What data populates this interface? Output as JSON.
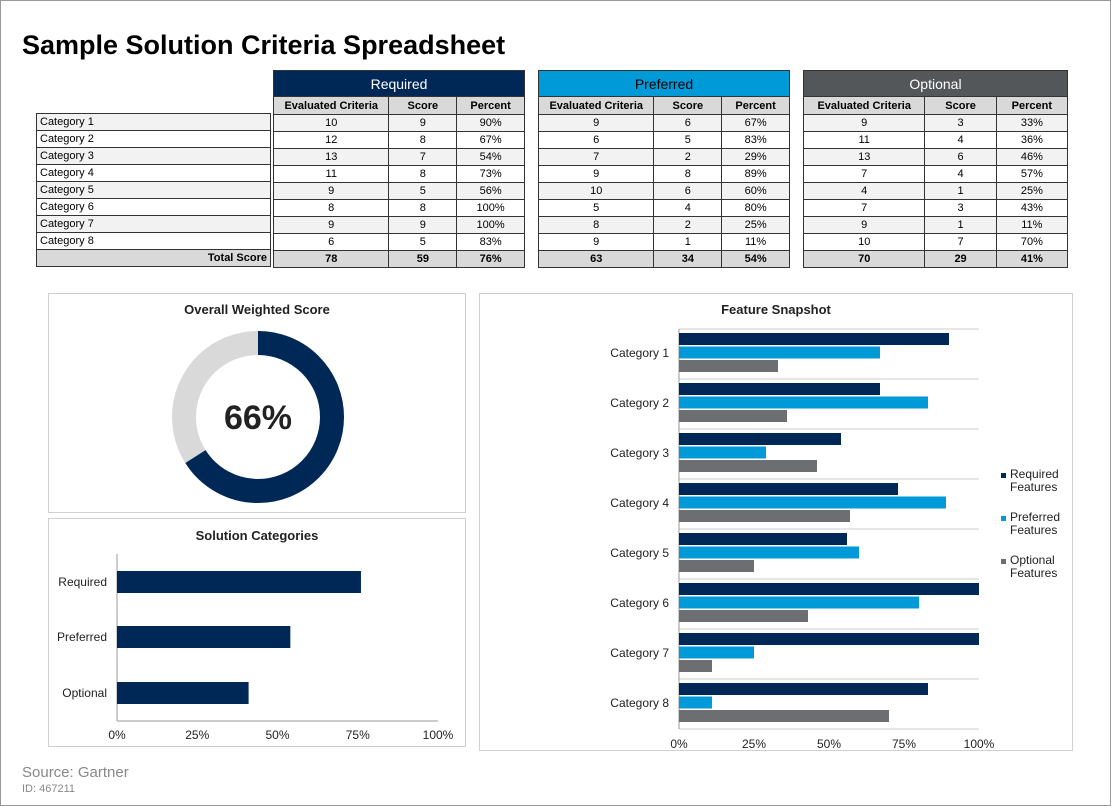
{
  "title": "Sample Solution Criteria Spreadsheet",
  "table": {
    "categories": [
      "Category 1",
      "Category 2",
      "Category 3",
      "Category 4",
      "Category 5",
      "Category 6",
      "Category 7",
      "Category 8"
    ],
    "total_label": "Total Score",
    "columns": [
      "Evaluated Criteria",
      "Score",
      "Percent"
    ],
    "groups": [
      {
        "name": "Required",
        "color": "#002856",
        "text_color": "#ffffff",
        "rows": [
          [
            "10",
            "9",
            "90%"
          ],
          [
            "12",
            "8",
            "67%"
          ],
          [
            "13",
            "7",
            "54%"
          ],
          [
            "11",
            "8",
            "73%"
          ],
          [
            "9",
            "5",
            "56%"
          ],
          [
            "8",
            "8",
            "100%"
          ],
          [
            "9",
            "9",
            "100%"
          ],
          [
            "6",
            "5",
            "83%"
          ]
        ],
        "total": [
          "78",
          "59",
          "76%"
        ]
      },
      {
        "name": "Preferred",
        "color": "#009ad9",
        "text_color": "#000000",
        "rows": [
          [
            "9",
            "6",
            "67%"
          ],
          [
            "6",
            "5",
            "83%"
          ],
          [
            "7",
            "2",
            "29%"
          ],
          [
            "9",
            "8",
            "89%"
          ],
          [
            "10",
            "6",
            "60%"
          ],
          [
            "5",
            "4",
            "80%"
          ],
          [
            "8",
            "2",
            "25%"
          ],
          [
            "9",
            "1",
            "11%"
          ]
        ],
        "total": [
          "63",
          "34",
          "54%"
        ]
      },
      {
        "name": "Optional",
        "color": "#53575a",
        "text_color": "#ffffff",
        "rows": [
          [
            "9",
            "3",
            "33%"
          ],
          [
            "11",
            "4",
            "36%"
          ],
          [
            "13",
            "6",
            "46%"
          ],
          [
            "7",
            "4",
            "57%"
          ],
          [
            "4",
            "1",
            "25%"
          ],
          [
            "7",
            "3",
            "43%"
          ],
          [
            "9",
            "1",
            "11%"
          ],
          [
            "10",
            "7",
            "70%"
          ]
        ],
        "total": [
          "70",
          "29",
          "41%"
        ]
      }
    ]
  },
  "chart_data": [
    {
      "type": "pie",
      "title": "Overall Weighted Score",
      "values": [
        66,
        34
      ],
      "center_label": "66%",
      "colors": [
        "#002856",
        "#d9d9d9"
      ]
    },
    {
      "type": "bar",
      "orientation": "horizontal",
      "title": "Solution Categories",
      "categories": [
        "Required",
        "Preferred",
        "Optional"
      ],
      "values": [
        76,
        54,
        41
      ],
      "xlim": [
        0,
        100
      ],
      "xticks": [
        "0%",
        "25%",
        "50%",
        "75%",
        "100%"
      ],
      "color": "#002856"
    },
    {
      "type": "bar",
      "orientation": "horizontal",
      "title": "Feature Snapshot",
      "categories": [
        "Category 1",
        "Category 2",
        "Category 3",
        "Category 4",
        "Category 5",
        "Category 6",
        "Category 7",
        "Category 8"
      ],
      "xlim": [
        0,
        100
      ],
      "xticks": [
        "0%",
        "25%",
        "50%",
        "75%",
        "100%"
      ],
      "grid": true,
      "legend": "right",
      "series": [
        {
          "name": "Required Features",
          "color": "#002856",
          "values": [
            90,
            67,
            54,
            73,
            56,
            100,
            100,
            83
          ]
        },
        {
          "name": "Preferred Features",
          "color": "#009ad9",
          "values": [
            67,
            83,
            29,
            89,
            60,
            80,
            25,
            11
          ]
        },
        {
          "name": "Optional Features",
          "color": "#6d6e71",
          "values": [
            33,
            36,
            46,
            57,
            25,
            43,
            11,
            70
          ]
        }
      ]
    }
  ],
  "footer": {
    "source": "Source: Gartner",
    "id": "ID: 467211"
  }
}
